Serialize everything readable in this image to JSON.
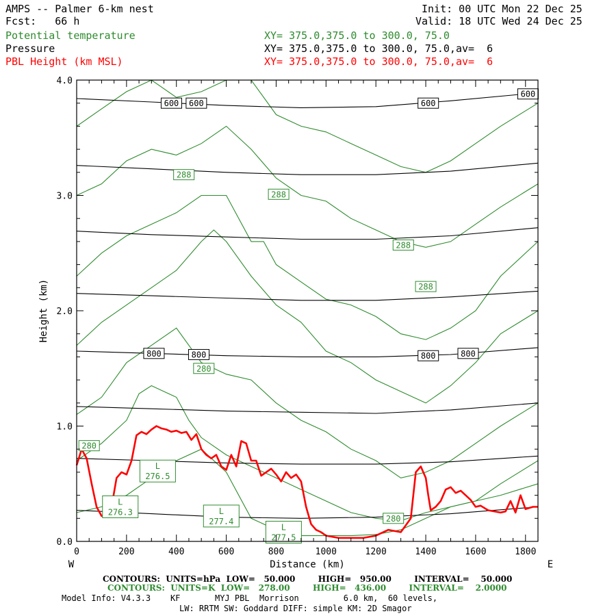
{
  "header": {
    "title": "AMPS -- Palmer 6-km nest",
    "fcst": "Fcst:   66 h",
    "init": "Init: 00 UTC Mon 22 Dec 25",
    "valid": "Valid: 18 UTC Wed 24 Dec 25",
    "fields": [
      {
        "name": "Potential temperature",
        "xy": "XY= 375.0,375.0 to 300.0, 75.0"
      },
      {
        "name": "Pressure",
        "xy": "XY= 375.0,375.0 to 300.0, 75.0,av=  6"
      },
      {
        "name": "PBL Height (km MSL)",
        "xy": "XY= 375.0,375.0 to 300.0, 75.0,av=  6"
      }
    ]
  },
  "footer": {
    "pressure_contours": "CONTOURS:  UNITS=hPa  LOW=   50.000        HIGH=   950.00        INTERVAL=    50.000",
    "theta_contours": "CONTOURS:  UNITS=K  LOW=   278.00        HIGH=   436.00        INTERVAL=    2.0000",
    "model_info_1": "Model Info: V4.3.3    KF       MYJ PBL  Morrison         6.0 km,  60 levels,",
    "model_info_2": "LW: RRTM SW: Goddard DIFF: simple KM: 2D Smagor"
  },
  "chart_data": {
    "type": "line",
    "xlabel": "Distance (km)",
    "ylabel": "Height (km)",
    "xlim": [
      0,
      1850
    ],
    "ylim": [
      0,
      4
    ],
    "xticks": [
      0,
      200,
      400,
      600,
      800,
      1000,
      1200,
      1400,
      1600,
      1800
    ],
    "yticks": [
      0.0,
      1.0,
      2.0,
      3.0,
      4.0
    ],
    "ytick_labels": [
      "0.0",
      "1.0",
      "2.0",
      "3.0",
      "4.0"
    ],
    "left_end_label": "W",
    "right_end_label": "E",
    "colors": {
      "pressure": "#000000",
      "theta": "#2e8b2e",
      "pbl": "#ff0000"
    },
    "pbl_height": {
      "x": [
        0,
        20,
        40,
        60,
        80,
        100,
        120,
        140,
        160,
        180,
        200,
        220,
        240,
        260,
        280,
        300,
        320,
        340,
        360,
        380,
        400,
        420,
        440,
        460,
        480,
        500,
        520,
        540,
        560,
        580,
        600,
        620,
        640,
        660,
        680,
        700,
        720,
        740,
        760,
        780,
        800,
        820,
        840,
        860,
        880,
        900,
        920,
        940,
        960,
        980,
        1000,
        1050,
        1100,
        1150,
        1200,
        1250,
        1300,
        1340,
        1360,
        1380,
        1400,
        1410,
        1420,
        1440,
        1460,
        1480,
        1500,
        1520,
        1540,
        1560,
        1580,
        1600,
        1620,
        1650,
        1700,
        1720,
        1740,
        1760,
        1780,
        1800,
        1830,
        1850
      ],
      "y": [
        0.66,
        0.8,
        0.72,
        0.5,
        0.3,
        0.22,
        0.22,
        0.3,
        0.55,
        0.6,
        0.58,
        0.7,
        0.92,
        0.95,
        0.93,
        0.97,
        1.0,
        0.98,
        0.97,
        0.95,
        0.96,
        0.94,
        0.95,
        0.88,
        0.93,
        0.8,
        0.75,
        0.72,
        0.75,
        0.65,
        0.62,
        0.75,
        0.65,
        0.87,
        0.85,
        0.7,
        0.7,
        0.57,
        0.6,
        0.63,
        0.58,
        0.52,
        0.6,
        0.55,
        0.58,
        0.52,
        0.3,
        0.15,
        0.1,
        0.08,
        0.05,
        0.03,
        0.03,
        0.03,
        0.05,
        0.1,
        0.08,
        0.2,
        0.6,
        0.65,
        0.55,
        0.4,
        0.27,
        0.3,
        0.35,
        0.45,
        0.47,
        0.42,
        0.44,
        0.4,
        0.36,
        0.3,
        0.31,
        0.27,
        0.25,
        0.26,
        0.35,
        0.25,
        0.4,
        0.28,
        0.3,
        0.3
      ]
    },
    "pressure_isobars": [
      {
        "level": "",
        "x": [
          0,
          300,
          600,
          900,
          1200,
          1500,
          1850
        ],
        "y": [
          0.27,
          0.24,
          0.21,
          0.2,
          0.21,
          0.24,
          0.3
        ]
      },
      {
        "level": "",
        "x": [
          0,
          300,
          600,
          900,
          1200,
          1500,
          1850
        ],
        "y": [
          0.72,
          0.7,
          0.68,
          0.67,
          0.67,
          0.69,
          0.74
        ]
      },
      {
        "level": "",
        "x": [
          0,
          300,
          600,
          900,
          1200,
          1500,
          1850
        ],
        "y": [
          1.17,
          1.15,
          1.13,
          1.12,
          1.11,
          1.14,
          1.2
        ]
      },
      {
        "level": "800",
        "x": [
          0,
          300,
          600,
          900,
          1200,
          1500,
          1850
        ],
        "y": [
          1.65,
          1.63,
          1.61,
          1.6,
          1.6,
          1.62,
          1.68
        ]
      },
      {
        "level": "",
        "x": [
          0,
          300,
          600,
          900,
          1200,
          1500,
          1850
        ],
        "y": [
          2.15,
          2.13,
          2.11,
          2.09,
          2.09,
          2.12,
          2.17
        ]
      },
      {
        "level": "",
        "x": [
          0,
          300,
          600,
          900,
          1200,
          1500,
          1850
        ],
        "y": [
          2.69,
          2.66,
          2.64,
          2.62,
          2.62,
          2.65,
          2.72
        ]
      },
      {
        "level": "",
        "x": [
          0,
          300,
          600,
          900,
          1200,
          1500,
          1850
        ],
        "y": [
          3.26,
          3.23,
          3.2,
          3.18,
          3.18,
          3.21,
          3.28
        ]
      },
      {
        "level": "600",
        "x": [
          0,
          300,
          600,
          900,
          1200,
          1500,
          1850
        ],
        "y": [
          3.84,
          3.81,
          3.78,
          3.76,
          3.77,
          3.82,
          3.89
        ]
      }
    ],
    "pressure_labels": [
      {
        "text": "600",
        "x": 380,
        "y": 3.8
      },
      {
        "text": "600",
        "x": 480,
        "y": 3.8
      },
      {
        "text": "600",
        "x": 1410,
        "y": 3.8
      },
      {
        "text": "600",
        "x": 1810,
        "y": 3.88
      },
      {
        "text": "800",
        "x": 310,
        "y": 1.63
      },
      {
        "text": "800",
        "x": 490,
        "y": 1.62
      },
      {
        "text": "800",
        "x": 1410,
        "y": 1.61
      },
      {
        "text": "800",
        "x": 1570,
        "y": 1.63
      }
    ],
    "theta_isentropes": [
      {
        "x": [
          0,
          100,
          200,
          300,
          400,
          500,
          600,
          700,
          800,
          900,
          1000,
          1100,
          1200,
          1300,
          1400,
          1500,
          1600,
          1700,
          1850
        ],
        "y": [
          0.25,
          0.3,
          0.4,
          0.55,
          0.7,
          0.8,
          0.6,
          0.2,
          0.1,
          0.05,
          0.05,
          0.05,
          0.06,
          0.1,
          0.2,
          0.3,
          0.35,
          0.4,
          0.5
        ]
      },
      {
        "x": [
          0,
          100,
          200,
          250,
          300,
          350,
          400,
          450,
          500,
          600,
          700,
          800,
          900,
          1000,
          1100,
          1200,
          1300,
          1400,
          1500,
          1600,
          1700,
          1850
        ],
        "y": [
          0.7,
          0.85,
          1.05,
          1.28,
          1.35,
          1.3,
          1.25,
          1.05,
          0.9,
          0.75,
          0.65,
          0.55,
          0.45,
          0.35,
          0.25,
          0.2,
          0.18,
          0.25,
          0.3,
          0.35,
          0.5,
          0.7
        ]
      },
      {
        "x": [
          0,
          100,
          200,
          300,
          400,
          500,
          600,
          700,
          800,
          900,
          1000,
          1100,
          1200,
          1300,
          1400,
          1500,
          1600,
          1700,
          1850
        ],
        "y": [
          1.1,
          1.25,
          1.55,
          1.7,
          1.85,
          1.55,
          1.45,
          1.4,
          1.2,
          1.05,
          0.95,
          0.8,
          0.7,
          0.55,
          0.6,
          0.7,
          0.85,
          1.0,
          1.2
        ]
      },
      {
        "x": [
          0,
          100,
          200,
          300,
          400,
          500,
          550,
          600,
          700,
          800,
          900,
          1000,
          1100,
          1200,
          1300,
          1400,
          1500,
          1600,
          1700,
          1850
        ],
        "y": [
          1.7,
          1.9,
          2.05,
          2.2,
          2.35,
          2.6,
          2.7,
          2.6,
          2.3,
          2.05,
          1.9,
          1.65,
          1.55,
          1.4,
          1.3,
          1.2,
          1.35,
          1.55,
          1.8,
          2.0
        ]
      },
      {
        "x": [
          0,
          100,
          200,
          300,
          400,
          500,
          600,
          700,
          750,
          800,
          900,
          1000,
          1100,
          1200,
          1300,
          1400,
          1500,
          1600,
          1700,
          1850
        ],
        "y": [
          2.3,
          2.5,
          2.65,
          2.75,
          2.85,
          3.0,
          3.0,
          2.6,
          2.6,
          2.4,
          2.25,
          2.1,
          2.05,
          1.95,
          1.8,
          1.75,
          1.85,
          2.0,
          2.3,
          2.6
        ]
      },
      {
        "x": [
          0,
          100,
          200,
          300,
          400,
          500,
          600,
          700,
          800,
          900,
          1000,
          1100,
          1200,
          1300,
          1400,
          1500,
          1600,
          1700,
          1850
        ],
        "y": [
          3.0,
          3.1,
          3.3,
          3.4,
          3.35,
          3.45,
          3.6,
          3.4,
          3.15,
          3.0,
          2.95,
          2.8,
          2.7,
          2.6,
          2.55,
          2.6,
          2.75,
          2.9,
          3.1
        ]
      },
      {
        "x": [
          0,
          100,
          200,
          300,
          400,
          500,
          600,
          700,
          800,
          900,
          1000,
          1100,
          1200,
          1300,
          1400,
          1500,
          1600,
          1700,
          1850
        ],
        "y": [
          3.6,
          3.75,
          3.9,
          4.0,
          3.85,
          3.9,
          4.0,
          4.0,
          3.7,
          3.6,
          3.55,
          3.45,
          3.35,
          3.25,
          3.2,
          3.3,
          3.45,
          3.6,
          3.8
        ]
      }
    ],
    "theta_labels": [
      {
        "text": "288",
        "x": 430,
        "y": 3.18
      },
      {
        "text": "288",
        "x": 810,
        "y": 3.01
      },
      {
        "text": "288",
        "x": 1310,
        "y": 2.57
      },
      {
        "text": "288",
        "x": 1400,
        "y": 2.21
      },
      {
        "text": "280",
        "x": 50,
        "y": 0.83
      },
      {
        "text": "280",
        "x": 510,
        "y": 1.5
      },
      {
        "text": "280",
        "x": 1270,
        "y": 0.2
      }
    ],
    "lows": [
      {
        "text": "L",
        "value": "276.5",
        "x": 325,
        "y": 0.61
      },
      {
        "text": "L",
        "value": "276.3",
        "x": 175,
        "y": 0.3
      },
      {
        "text": "L",
        "value": "277.4",
        "x": 580,
        "y": 0.22
      },
      {
        "text": "L",
        "value": "277.5",
        "x": 830,
        "y": 0.08
      }
    ]
  }
}
